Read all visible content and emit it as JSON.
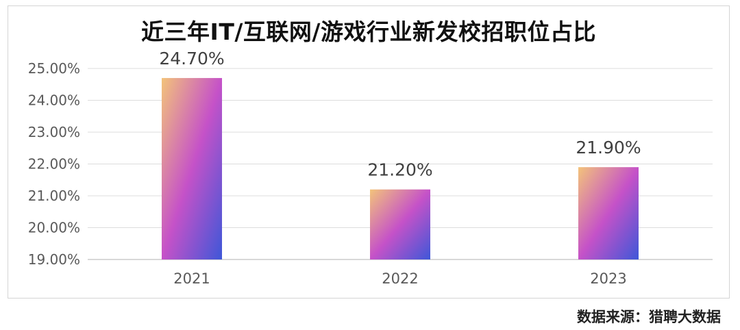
{
  "chart_data": {
    "type": "bar",
    "title": "近三年IT/互联网/游戏行业新发校招职位占比",
    "categories": [
      "2021",
      "2022",
      "2023"
    ],
    "values": [
      24.7,
      21.2,
      21.9
    ],
    "data_labels": [
      "24.70%",
      "21.20%",
      "21.90%"
    ],
    "ylim": [
      19.0,
      25.0
    ],
    "y_ticks": [
      19,
      20,
      21,
      22,
      23,
      24,
      25
    ],
    "y_tick_labels": [
      "19.00%",
      "20.00%",
      "21.00%",
      "22.00%",
      "23.00%",
      "24.00%",
      "25.00%"
    ],
    "xlabel": "",
    "ylabel": "",
    "grid": true,
    "legend": "none",
    "bar_gradient": [
      "#f3c37a",
      "#c552c8",
      "#3e57d8"
    ],
    "grid_color": "#dcdcdc",
    "axis_color": "#cccccc",
    "tick_label_color": "#595959",
    "data_label_color": "#404040"
  },
  "source": "数据来源：猎聘大数据"
}
